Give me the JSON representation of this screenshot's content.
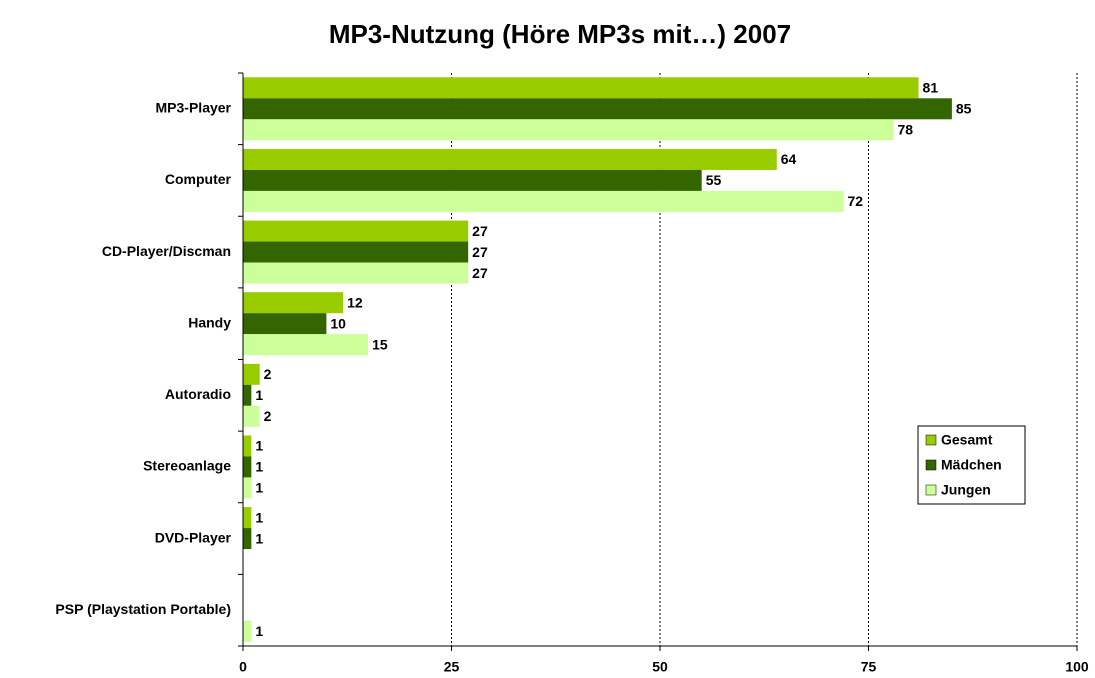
{
  "chart_data": {
    "type": "barh",
    "title": "MP3-Nutzung (Höre MP3s mit…) 2007",
    "categories": [
      "MP3-Player",
      "Computer",
      "CD-Player/Discman",
      "Handy",
      "Autoradio",
      "Stereoanlage",
      "DVD-Player",
      "PSP (Playstation Portable)"
    ],
    "series": [
      {
        "name": "Gesamt",
        "color": "#99cc00",
        "values": [
          81,
          64,
          27,
          12,
          2,
          1,
          1,
          null
        ]
      },
      {
        "name": "Mädchen",
        "color": "#336600",
        "values": [
          85,
          55,
          27,
          10,
          1,
          1,
          1,
          null
        ]
      },
      {
        "name": "Jungen",
        "color": "#ccff99",
        "values": [
          78,
          72,
          27,
          15,
          2,
          1,
          null,
          1
        ]
      }
    ],
    "xlim": [
      0,
      100
    ],
    "xticks": [
      0,
      25,
      50,
      75,
      100
    ],
    "grid": true,
    "legend": "right"
  }
}
